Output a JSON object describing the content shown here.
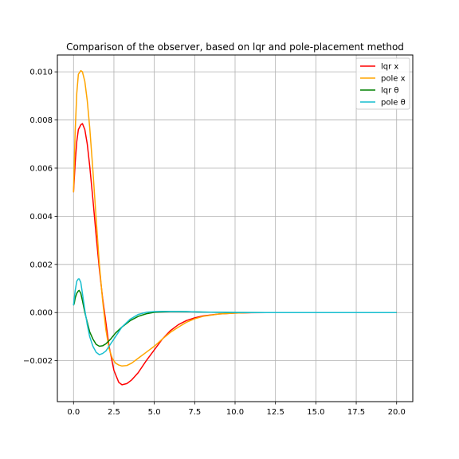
{
  "chart_data": {
    "type": "line",
    "title": "Comparison of the observer, based on lqr and pole-placement method",
    "xlabel": "",
    "ylabel": "",
    "xlim": [
      -1.0,
      21.0
    ],
    "ylim": [
      -0.0037,
      0.0107
    ],
    "grid": true,
    "legend_position": "top-right",
    "x_ticks": [
      0.0,
      2.5,
      5.0,
      7.5,
      10.0,
      12.5,
      15.0,
      17.5,
      20.0
    ],
    "x_tick_labels": [
      "0.0",
      "2.5",
      "5.0",
      "7.5",
      "10.0",
      "12.5",
      "15.0",
      "17.5",
      "20.0"
    ],
    "y_ticks": [
      -0.002,
      0.0,
      0.002,
      0.004,
      0.006,
      0.008,
      0.01
    ],
    "y_tick_labels": [
      "−0.002",
      "0.000",
      "0.002",
      "0.004",
      "0.006",
      "0.008",
      "0.010"
    ],
    "series": [
      {
        "name": "lqr x",
        "color": "#ff0000",
        "x": [
          0.0,
          0.1,
          0.2,
          0.3,
          0.45,
          0.55,
          0.7,
          0.85,
          1.0,
          1.2,
          1.4,
          1.6,
          1.8,
          2.0,
          2.2,
          2.5,
          2.8,
          3.0,
          3.3,
          3.6,
          4.0,
          4.5,
          5.0,
          5.5,
          6.0,
          6.5,
          7.0,
          7.5,
          8.0,
          9.0,
          10.0,
          11.0,
          12.0,
          14.0,
          16.0,
          18.0,
          20.0
        ],
        "y": [
          0.005,
          0.0062,
          0.0071,
          0.0076,
          0.0078,
          0.00785,
          0.0076,
          0.007,
          0.0061,
          0.0047,
          0.0032,
          0.0018,
          0.0006,
          -0.0004,
          -0.0014,
          -0.0024,
          -0.0029,
          -0.003,
          -0.00295,
          -0.0028,
          -0.0025,
          -0.002,
          -0.00155,
          -0.0011,
          -0.00075,
          -0.0005,
          -0.00033,
          -0.00022,
          -0.00014,
          -6e-05,
          -2e-05,
          -5e-06,
          0.0,
          0.0,
          0.0,
          0.0,
          0.0
        ]
      },
      {
        "name": "pole x",
        "color": "#ffa500",
        "x": [
          0.0,
          0.1,
          0.2,
          0.3,
          0.45,
          0.55,
          0.7,
          0.85,
          1.0,
          1.2,
          1.4,
          1.6,
          1.8,
          2.0,
          2.2,
          2.4,
          2.6,
          2.8,
          3.0,
          3.3,
          3.6,
          4.0,
          4.5,
          5.0,
          5.5,
          6.0,
          6.5,
          7.0,
          7.5,
          8.0,
          9.0,
          10.0,
          11.0,
          12.0,
          14.0,
          16.0,
          18.0,
          20.0
        ],
        "y": [
          0.005,
          0.0075,
          0.0091,
          0.0099,
          0.01005,
          0.01,
          0.0096,
          0.0088,
          0.0077,
          0.0059,
          0.0039,
          0.002,
          0.0005,
          -0.0007,
          -0.0015,
          -0.0019,
          -0.0021,
          -0.00218,
          -0.00222,
          -0.0022,
          -0.0021,
          -0.0019,
          -0.00165,
          -0.0014,
          -0.0011,
          -0.00082,
          -0.0006,
          -0.0004,
          -0.00026,
          -0.00016,
          -6e-05,
          -2e-05,
          0.0,
          0.0,
          0.0,
          0.0,
          0.0,
          0.0
        ]
      },
      {
        "name": "lqr θ",
        "color": "#008000",
        "x": [
          0.0,
          0.05,
          0.1,
          0.2,
          0.3,
          0.35,
          0.45,
          0.55,
          0.7,
          0.85,
          1.0,
          1.2,
          1.4,
          1.6,
          1.8,
          2.0,
          2.3,
          2.6,
          3.0,
          3.5,
          4.0,
          4.5,
          5.0,
          5.5,
          6.0,
          6.5,
          7.0,
          7.5,
          8.0,
          9.0,
          10.0,
          12.0,
          14.0,
          16.0,
          18.0,
          20.0
        ],
        "y": [
          0.0003,
          0.0004,
          0.0006,
          0.0008,
          0.0009,
          0.00092,
          0.0008,
          0.0005,
          0.0,
          -0.0004,
          -0.0008,
          -0.0011,
          -0.00132,
          -0.0014,
          -0.00138,
          -0.0013,
          -0.0011,
          -0.00085,
          -0.0006,
          -0.00034,
          -0.00016,
          -5e-05,
          1e-05,
          3e-05,
          4e-05,
          4e-05,
          3.5e-05,
          3e-05,
          2e-05,
          1e-05,
          5e-06,
          0.0,
          0.0,
          0.0,
          0.0,
          0.0
        ]
      },
      {
        "name": "pole θ",
        "color": "#17becf",
        "x": [
          0.0,
          0.05,
          0.1,
          0.2,
          0.3,
          0.35,
          0.45,
          0.55,
          0.7,
          0.85,
          1.0,
          1.2,
          1.4,
          1.6,
          1.8,
          2.0,
          2.3,
          2.6,
          3.0,
          3.5,
          4.0,
          4.5,
          5.0,
          5.5,
          6.0,
          6.5,
          7.0,
          7.5,
          8.0,
          9.0,
          10.0,
          12.0,
          14.0,
          16.0,
          18.0,
          20.0
        ],
        "y": [
          0.0003,
          0.0006,
          0.0009,
          0.0013,
          0.0014,
          0.0014,
          0.00125,
          0.0008,
          0.0001,
          -0.0005,
          -0.001,
          -0.0014,
          -0.00165,
          -0.00175,
          -0.0017,
          -0.0016,
          -0.0013,
          -0.001,
          -0.0006,
          -0.00028,
          -8e-05,
          1e-05,
          4e-05,
          5e-05,
          5e-05,
          4.5e-05,
          4e-05,
          3e-05,
          2e-05,
          1e-05,
          5e-06,
          0.0,
          0.0,
          0.0,
          0.0,
          0.0
        ]
      }
    ]
  }
}
